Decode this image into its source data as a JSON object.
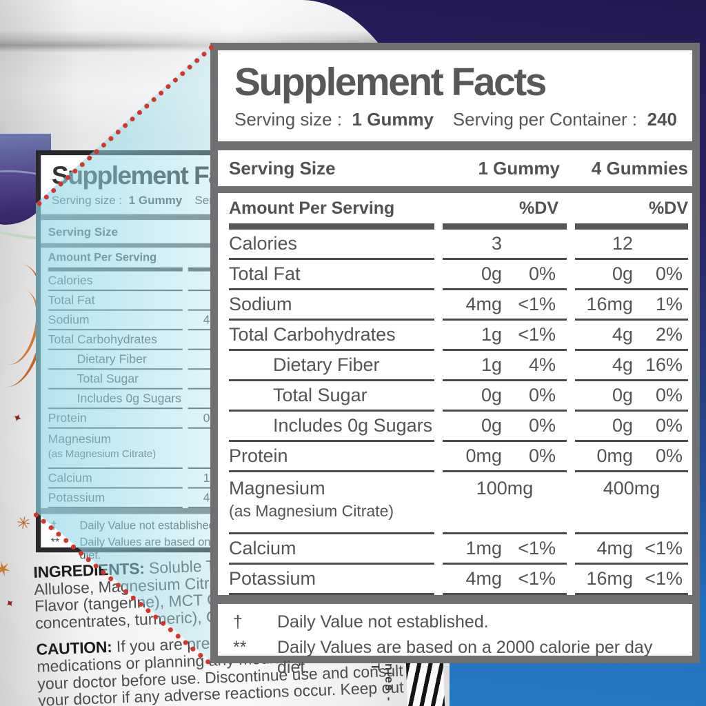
{
  "panel": {
    "title": "Supplement Facts",
    "serving_size_label": "Serving size :",
    "serving_size_value": "1 Gummy",
    "servings_per_container_label": "Serving per Container :",
    "servings_per_container_value": "240",
    "columns": {
      "serving_size": "Serving Size",
      "col1": "1 Gummy",
      "col2": "4 Gummies",
      "amount_per_serving": "Amount Per Serving",
      "dv1": "%DV",
      "dv2": "%DV"
    },
    "rows": [
      {
        "label": "Calories",
        "indent": false,
        "c1_amt": "3",
        "c1_dv": "",
        "c2_amt": "12",
        "c2_dv": ""
      },
      {
        "label": "Total Fat",
        "indent": false,
        "c1_amt": "0g",
        "c1_dv": "0%",
        "c2_amt": "0g",
        "c2_dv": "0%"
      },
      {
        "label": "Sodium",
        "indent": false,
        "c1_amt": "4mg",
        "c1_dv": "<1%",
        "c2_amt": "16mg",
        "c2_dv": "1%"
      },
      {
        "label": "Total Carbohydrates",
        "indent": false,
        "c1_amt": "1g",
        "c1_dv": "<1%",
        "c2_amt": "4g",
        "c2_dv": "2%"
      },
      {
        "label": "Dietary Fiber",
        "indent": true,
        "c1_amt": "1g",
        "c1_dv": "4%",
        "c2_amt": "4g",
        "c2_dv": "16%"
      },
      {
        "label": "Total Sugar",
        "indent": true,
        "c1_amt": "0g",
        "c1_dv": "0%",
        "c2_amt": "0g",
        "c2_dv": "0%"
      },
      {
        "label": "Includes 0g Sugars",
        "indent": true,
        "c1_amt": "0g",
        "c1_dv": "0%",
        "c2_amt": "0g",
        "c2_dv": "0%"
      },
      {
        "label": "Protein",
        "indent": false,
        "c1_amt": "0mg",
        "c1_dv": "0%",
        "c2_amt": "0mg",
        "c2_dv": "0%"
      },
      {
        "label": "Magnesium",
        "sub": "(as Magnesium Citrate)",
        "indent": false,
        "center": true,
        "c1_amt": "100mg",
        "c2_amt": "400mg"
      },
      {
        "label": "Calcium",
        "indent": false,
        "c1_amt": "1mg",
        "c1_dv": "<1%",
        "c2_amt": "4mg",
        "c2_dv": "<1%"
      },
      {
        "label": "Potassium",
        "indent": false,
        "c1_amt": "4mg",
        "c1_dv": "<1%",
        "c2_amt": "16mg",
        "c2_dv": "<1%"
      }
    ],
    "footnotes": [
      {
        "symbol": "†",
        "text": "Daily Value not established."
      },
      {
        "symbol": "**",
        "text": "Daily Values are based on a 2000 calorie per day diet."
      }
    ]
  },
  "bottle_label": {
    "ingredients_heading": "INGREDIENTS:",
    "ingredients_lines": [
      " Soluble Tapioca",
      "Allulose, Magnesium Citrate, Pec",
      "Flavor (tangerine), MCT Oil, Natu",
      "concentrates, turmeric), Carnau"
    ],
    "caution_heading": "CAUTION:",
    "caution_lines": [
      " If you are pregnant,",
      "medications or planning any medical procedure, consult",
      "your doctor before use. Discontinue use and consult",
      "your doctor if any adverse reactions occur. Keep out"
    ],
    "vertical_text": "nies - T"
  },
  "colors": {
    "panel_border": "#707072",
    "panel_text": "#57585a",
    "row_line": "#4b4c4e",
    "dotted_line": "#d4352c",
    "highlight_wedge": "#8dd6e4",
    "background_top": "#241a52",
    "background_bottom": "#2a7cc8",
    "shoulder_purple": "#3c2b70",
    "deco_orange": "#c2662a"
  }
}
